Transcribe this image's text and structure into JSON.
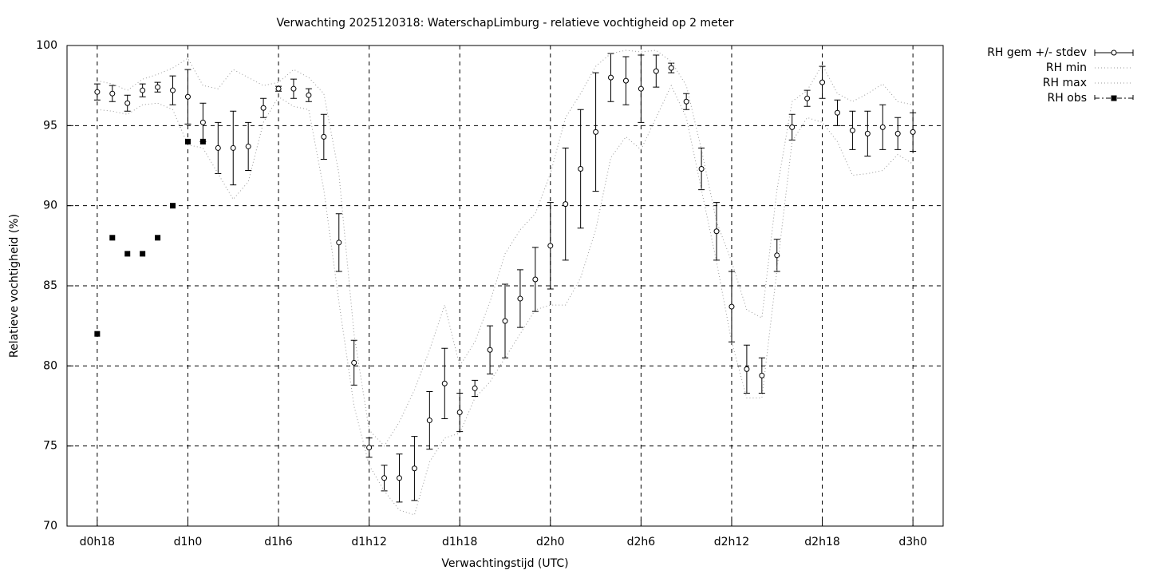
{
  "chart_data": {
    "type": "errorbar",
    "title": "Verwachting 2025120318: WaterschapLimburg - relatieve vochtigheid op 2 meter",
    "x_label": "Verwachtingstijd (UTC)",
    "y_label": "Relatieve vochtigheid (%)",
    "x": [
      18,
      19,
      20,
      21,
      22,
      23,
      24,
      25,
      26,
      27,
      28,
      29,
      30,
      31,
      32,
      33,
      34,
      35,
      36,
      37,
      38,
      39,
      40,
      41,
      42,
      43,
      44,
      45,
      46,
      47,
      48,
      49,
      50,
      51,
      52,
      53,
      54,
      55,
      56,
      57,
      58,
      59,
      60,
      61,
      62,
      63,
      64,
      65,
      66,
      67,
      68,
      69,
      70,
      71,
      72
    ],
    "xlim": [
      16,
      74
    ],
    "xticks": [
      {
        "value": 18,
        "label": "d0h18"
      },
      {
        "value": 24,
        "label": "d1h0"
      },
      {
        "value": 30,
        "label": "d1h6"
      },
      {
        "value": 36,
        "label": "d1h12"
      },
      {
        "value": 42,
        "label": "d1h18"
      },
      {
        "value": 48,
        "label": "d2h0"
      },
      {
        "value": 54,
        "label": "d2h6"
      },
      {
        "value": 60,
        "label": "d2h12"
      },
      {
        "value": 66,
        "label": "d2h18"
      },
      {
        "value": 72,
        "label": "d3h0"
      }
    ],
    "ylim": [
      70,
      100
    ],
    "yticks": [
      70,
      75,
      80,
      85,
      90,
      95,
      100
    ],
    "grid": true,
    "legend": "outside-right",
    "series": [
      {
        "name": "RH gem +/- stdev",
        "style": "errorbars",
        "color": "#000000",
        "values": [
          97.1,
          97.0,
          96.4,
          97.2,
          97.4,
          97.2,
          96.8,
          95.2,
          93.6,
          93.6,
          93.7,
          96.1,
          97.3,
          97.3,
          96.9,
          94.3,
          87.7,
          80.2,
          74.9,
          73.0,
          73.0,
          73.6,
          76.6,
          78.9,
          77.1,
          78.6,
          81.0,
          82.8,
          84.2,
          85.4,
          87.5,
          90.1,
          92.3,
          94.6,
          98.0,
          97.8,
          97.3,
          98.4,
          98.6,
          96.5,
          92.3,
          88.4,
          83.7,
          79.8,
          79.4,
          86.9,
          94.9,
          96.7,
          97.7,
          95.8,
          94.7,
          94.5,
          94.9,
          94.5,
          94.6
        ],
        "errors": [
          0.5,
          0.5,
          0.5,
          0.4,
          0.3,
          0.9,
          1.7,
          1.2,
          1.6,
          2.3,
          1.5,
          0.6,
          0.15,
          0.6,
          0.4,
          1.4,
          1.8,
          1.4,
          0.6,
          0.8,
          1.5,
          2.0,
          1.8,
          2.2,
          1.2,
          0.5,
          1.5,
          2.3,
          1.8,
          2.0,
          2.7,
          3.5,
          3.7,
          3.7,
          1.5,
          1.5,
          2.1,
          1.0,
          0.3,
          0.5,
          1.3,
          1.8,
          2.2,
          1.5,
          1.1,
          1.0,
          0.8,
          0.5,
          1.0,
          0.8,
          1.2,
          1.4,
          1.4,
          1.0,
          1.2
        ]
      },
      {
        "name": "RH min",
        "style": "dotted",
        "color": "#999999",
        "values": [
          96.0,
          95.9,
          95.7,
          96.3,
          96.4,
          96.0,
          93.8,
          93.6,
          92.0,
          90.4,
          91.5,
          95.2,
          96.8,
          96.2,
          96.0,
          91.0,
          84.0,
          77.5,
          73.8,
          72.2,
          71.0,
          70.7,
          74.0,
          75.5,
          75.8,
          78.0,
          79.0,
          80.5,
          82.0,
          83.5,
          83.8,
          83.8,
          85.5,
          88.5,
          93.0,
          94.3,
          93.5,
          95.5,
          97.5,
          95.5,
          91.0,
          86.5,
          81.5,
          78.0,
          78.0,
          86.0,
          94.0,
          95.5,
          95.2,
          94.0,
          91.9,
          92.0,
          92.2,
          93.2,
          92.6
        ]
      },
      {
        "name": "RH max",
        "style": "dotted",
        "color": "#999999",
        "values": [
          97.8,
          97.6,
          97.2,
          97.9,
          98.2,
          98.6,
          99.2,
          97.5,
          97.3,
          98.5,
          98.0,
          97.5,
          97.7,
          98.5,
          98.0,
          97.0,
          92.0,
          82.0,
          76.0,
          75.0,
          76.5,
          78.5,
          81.0,
          83.8,
          80.0,
          81.5,
          84.0,
          87.0,
          88.5,
          89.5,
          92.0,
          95.5,
          97.0,
          98.7,
          99.5,
          99.7,
          99.6,
          99.7,
          99.0,
          97.5,
          93.5,
          89.0,
          86.5,
          83.5,
          83.0,
          91.0,
          96.5,
          97.2,
          98.8,
          97.0,
          96.5,
          97.0,
          97.6,
          96.5,
          96.3
        ]
      },
      {
        "name": "RH obs",
        "style": "points",
        "color": "#000000",
        "values": [
          82,
          88,
          87,
          87,
          88,
          90,
          94,
          94,
          null,
          null,
          null,
          null,
          null,
          null,
          null,
          null,
          null,
          null,
          null,
          null,
          null,
          null,
          null,
          null,
          null,
          null,
          null,
          null,
          null,
          null,
          null,
          null,
          null,
          null,
          null,
          null,
          null,
          null,
          null,
          null,
          null,
          null,
          null,
          null,
          null,
          null,
          null,
          null,
          null,
          null,
          null,
          null,
          null,
          null,
          null
        ]
      }
    ]
  }
}
